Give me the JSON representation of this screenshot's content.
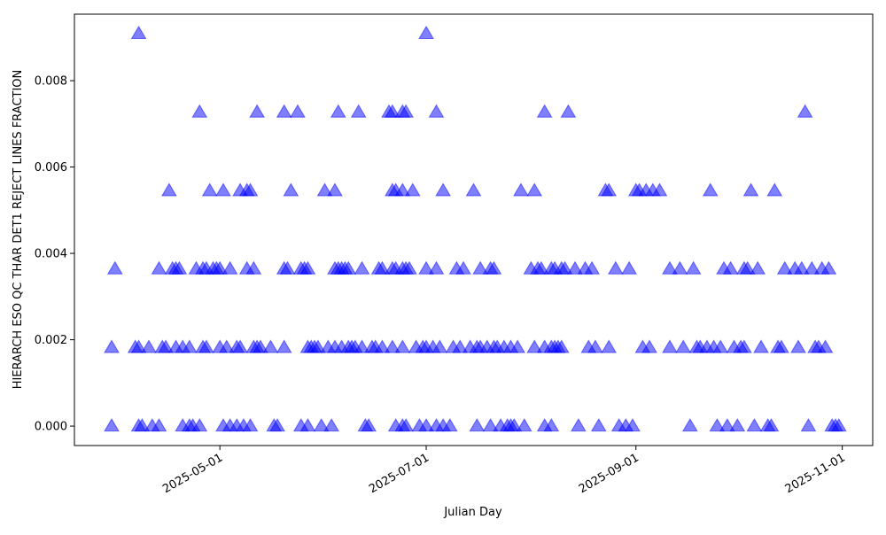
{
  "chart_data": {
    "type": "scatter",
    "x_label": "Julian Day",
    "y_label": "HIERARCH ESO QC THAR DET1 REJECT LINES FRACTION",
    "color": "blue",
    "alpha": 0.5,
    "marker": "triangle-up",
    "xlim": [
      "2025-03-19",
      "2025-11-10"
    ],
    "ylim": [
      -0.00045,
      0.00954
    ],
    "xticks": [
      "2025-05-01",
      "2025-07-01",
      "2025-09-01",
      "2025-11-01"
    ],
    "yticks": [
      {
        "value": 0,
        "label": "0.000"
      },
      {
        "value": 0.002,
        "label": "0.002"
      },
      {
        "value": 0.004,
        "label": "0.004"
      },
      {
        "value": 0.006,
        "label": "0.006"
      },
      {
        "value": 0.008,
        "label": "0.008"
      }
    ],
    "x": [
      "2025-04-07",
      "2025-07-01",
      "2025-04-25",
      "2025-05-12",
      "2025-05-20",
      "2025-05-24",
      "2025-06-05",
      "2025-06-11",
      "2025-06-20",
      "2025-06-21",
      "2025-06-24",
      "2025-06-25",
      "2025-07-04",
      "2025-08-05",
      "2025-08-12",
      "2025-10-21",
      "2025-04-16",
      "2025-04-28",
      "2025-05-02",
      "2025-05-07",
      "2025-05-09",
      "2025-05-10",
      "2025-05-22",
      "2025-06-01",
      "2025-06-04",
      "2025-06-21",
      "2025-06-22",
      "2025-06-24",
      "2025-06-27",
      "2025-07-06",
      "2025-07-15",
      "2025-07-29",
      "2025-08-02",
      "2025-08-23",
      "2025-08-24",
      "2025-09-01",
      "2025-09-02",
      "2025-09-04",
      "2025-09-06",
      "2025-09-08",
      "2025-09-23",
      "2025-10-05",
      "2025-10-12",
      "2025-03-31",
      "2025-04-13",
      "2025-04-17",
      "2025-04-18",
      "2025-04-19",
      "2025-04-24",
      "2025-04-26",
      "2025-04-27",
      "2025-04-29",
      "2025-04-30",
      "2025-05-01",
      "2025-05-04",
      "2025-05-09",
      "2025-05-11",
      "2025-05-20",
      "2025-05-21",
      "2025-05-25",
      "2025-05-26",
      "2025-05-27",
      "2025-06-04",
      "2025-06-05",
      "2025-06-06",
      "2025-06-07",
      "2025-06-08",
      "2025-06-12",
      "2025-06-17",
      "2025-06-18",
      "2025-06-21",
      "2025-06-22",
      "2025-06-24",
      "2025-06-25",
      "2025-06-26",
      "2025-07-01",
      "2025-07-04",
      "2025-07-10",
      "2025-07-12",
      "2025-07-17",
      "2025-07-20",
      "2025-07-21",
      "2025-08-01",
      "2025-08-03",
      "2025-08-04",
      "2025-08-07",
      "2025-08-08",
      "2025-08-10",
      "2025-08-11",
      "2025-08-14",
      "2025-08-17",
      "2025-08-19",
      "2025-08-26",
      "2025-08-30",
      "2025-09-11",
      "2025-09-14",
      "2025-09-18",
      "2025-09-27",
      "2025-09-29",
      "2025-10-03",
      "2025-10-04",
      "2025-10-07",
      "2025-10-15",
      "2025-10-18",
      "2025-10-20",
      "2025-10-23",
      "2025-10-26",
      "2025-10-28",
      "2025-03-30",
      "2025-04-06",
      "2025-04-07",
      "2025-04-10",
      "2025-04-14",
      "2025-04-15",
      "2025-04-18",
      "2025-04-20",
      "2025-04-22",
      "2025-04-26",
      "2025-04-27",
      "2025-05-01",
      "2025-05-03",
      "2025-05-06",
      "2025-05-07",
      "2025-05-11",
      "2025-05-12",
      "2025-05-13",
      "2025-05-16",
      "2025-05-20",
      "2025-05-27",
      "2025-05-28",
      "2025-05-29",
      "2025-05-30",
      "2025-06-02",
      "2025-06-04",
      "2025-06-06",
      "2025-06-08",
      "2025-06-09",
      "2025-06-10",
      "2025-06-12",
      "2025-06-15",
      "2025-06-16",
      "2025-06-18",
      "2025-06-21",
      "2025-06-24",
      "2025-06-28",
      "2025-06-30",
      "2025-07-01",
      "2025-07-03",
      "2025-07-05",
      "2025-07-09",
      "2025-07-11",
      "2025-07-14",
      "2025-07-16",
      "2025-07-17",
      "2025-07-19",
      "2025-07-21",
      "2025-07-22",
      "2025-07-24",
      "2025-07-26",
      "2025-07-28",
      "2025-08-02",
      "2025-08-05",
      "2025-08-07",
      "2025-08-08",
      "2025-08-09",
      "2025-08-10",
      "2025-08-18",
      "2025-08-20",
      "2025-08-24",
      "2025-09-03",
      "2025-09-05",
      "2025-09-11",
      "2025-09-15",
      "2025-09-19",
      "2025-09-20",
      "2025-09-22",
      "2025-09-24",
      "2025-09-26",
      "2025-09-30",
      "2025-10-02",
      "2025-10-03",
      "2025-10-08",
      "2025-10-13",
      "2025-10-14",
      "2025-10-19",
      "2025-10-24",
      "2025-10-25",
      "2025-10-27",
      "2025-03-30",
      "2025-04-07",
      "2025-04-08",
      "2025-04-11",
      "2025-04-13",
      "2025-04-20",
      "2025-04-22",
      "2025-04-23",
      "2025-04-25",
      "2025-05-02",
      "2025-05-04",
      "2025-05-06",
      "2025-05-08",
      "2025-05-10",
      "2025-05-17",
      "2025-05-18",
      "2025-05-25",
      "2025-05-27",
      "2025-05-31",
      "2025-06-03",
      "2025-06-13",
      "2025-06-14",
      "2025-06-22",
      "2025-06-24",
      "2025-06-25",
      "2025-06-29",
      "2025-07-01",
      "2025-07-04",
      "2025-07-06",
      "2025-07-08",
      "2025-07-16",
      "2025-07-20",
      "2025-07-23",
      "2025-07-25",
      "2025-07-26",
      "2025-07-27",
      "2025-07-30",
      "2025-08-05",
      "2025-08-07",
      "2025-08-15",
      "2025-08-21",
      "2025-08-27",
      "2025-08-29",
      "2025-08-31",
      "2025-09-17",
      "2025-09-25",
      "2025-09-28",
      "2025-10-01",
      "2025-10-06",
      "2025-10-10",
      "2025-10-11",
      "2025-10-22",
      "2025-10-29",
      "2025-10-30",
      "2025-10-31"
    ],
    "values": [
      0.00909,
      0.00909,
      0.00727,
      0.00727,
      0.00727,
      0.00727,
      0.00727,
      0.00727,
      0.00727,
      0.00727,
      0.00727,
      0.00727,
      0.00727,
      0.00727,
      0.00727,
      0.00727,
      0.00545,
      0.00545,
      0.00545,
      0.00545,
      0.00545,
      0.00545,
      0.00545,
      0.00545,
      0.00545,
      0.00545,
      0.00545,
      0.00545,
      0.00545,
      0.00545,
      0.00545,
      0.00545,
      0.00545,
      0.00545,
      0.00545,
      0.00545,
      0.00545,
      0.00545,
      0.00545,
      0.00545,
      0.00545,
      0.00545,
      0.00545,
      0.00364,
      0.00364,
      0.00364,
      0.00364,
      0.00364,
      0.00364,
      0.00364,
      0.00364,
      0.00364,
      0.00364,
      0.00364,
      0.00364,
      0.00364,
      0.00364,
      0.00364,
      0.00364,
      0.00364,
      0.00364,
      0.00364,
      0.00364,
      0.00364,
      0.00364,
      0.00364,
      0.00364,
      0.00364,
      0.00364,
      0.00364,
      0.00364,
      0.00364,
      0.00364,
      0.00364,
      0.00364,
      0.00364,
      0.00364,
      0.00364,
      0.00364,
      0.00364,
      0.00364,
      0.00364,
      0.00364,
      0.00364,
      0.00364,
      0.00364,
      0.00364,
      0.00364,
      0.00364,
      0.00364,
      0.00364,
      0.00364,
      0.00364,
      0.00364,
      0.00364,
      0.00364,
      0.00364,
      0.00364,
      0.00364,
      0.00364,
      0.00364,
      0.00364,
      0.00364,
      0.00364,
      0.00364,
      0.00364,
      0.00364,
      0.00364,
      0.00182,
      0.00182,
      0.00182,
      0.00182,
      0.00182,
      0.00182,
      0.00182,
      0.00182,
      0.00182,
      0.00182,
      0.00182,
      0.00182,
      0.00182,
      0.00182,
      0.00182,
      0.00182,
      0.00182,
      0.00182,
      0.00182,
      0.00182,
      0.00182,
      0.00182,
      0.00182,
      0.00182,
      0.00182,
      0.00182,
      0.00182,
      0.00182,
      0.00182,
      0.00182,
      0.00182,
      0.00182,
      0.00182,
      0.00182,
      0.00182,
      0.00182,
      0.00182,
      0.00182,
      0.00182,
      0.00182,
      0.00182,
      0.00182,
      0.00182,
      0.00182,
      0.00182,
      0.00182,
      0.00182,
      0.00182,
      0.00182,
      0.00182,
      0.00182,
      0.00182,
      0.00182,
      0.00182,
      0.00182,
      0.00182,
      0.00182,
      0.00182,
      0.00182,
      0.00182,
      0.00182,
      0.00182,
      0.00182,
      0.00182,
      0.00182,
      0.00182,
      0.00182,
      0.00182,
      0.00182,
      0.00182,
      0.00182,
      0.00182,
      0.00182,
      0.00182,
      0.00182,
      0.00182,
      0.00182,
      0.00182,
      0.00182,
      0.00182,
      0,
      0,
      0,
      0,
      0,
      0,
      0,
      0,
      0,
      0,
      0,
      0,
      0,
      0,
      0,
      0,
      0,
      0,
      0,
      0,
      0,
      0,
      0,
      0,
      0,
      0,
      0,
      0,
      0,
      0,
      0,
      0,
      0,
      0,
      0,
      0,
      0,
      0,
      0,
      0,
      0,
      0,
      0,
      0,
      0,
      0,
      0,
      0,
      0,
      0,
      0,
      0,
      0,
      0,
      0
    ]
  }
}
